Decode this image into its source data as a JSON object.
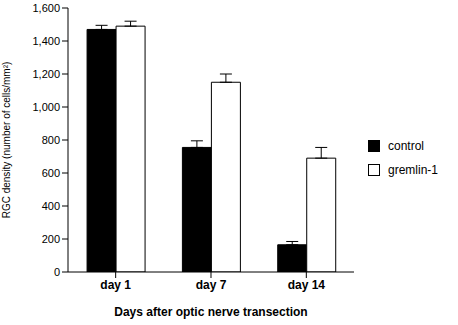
{
  "chart_data": {
    "type": "bar",
    "categories": [
      "day 1",
      "day 7",
      "day 14"
    ],
    "x_label": "Days after optic nerve transection",
    "y_label": "RGC density (number of cells/mm²)",
    "series": [
      {
        "name": "control",
        "color": "#000000",
        "values": [
          1470,
          755,
          165
        ],
        "errors": [
          25,
          40,
          20
        ]
      },
      {
        "name": "gremlin-1",
        "color": "#ffffff",
        "values": [
          1490,
          1150,
          690
        ],
        "errors": [
          30,
          50,
          65
        ]
      }
    ],
    "ylim": [
      0,
      1600
    ],
    "yticks": [
      0,
      200,
      400,
      600,
      800,
      {
        "value": 1000,
        "label": "1,000"
      },
      {
        "value": 1200,
        "label": "1,200"
      },
      {
        "value": 1400,
        "label": "1,400"
      },
      {
        "value": 1600,
        "label": "1,600"
      }
    ],
    "grid": false,
    "legend": "right"
  }
}
